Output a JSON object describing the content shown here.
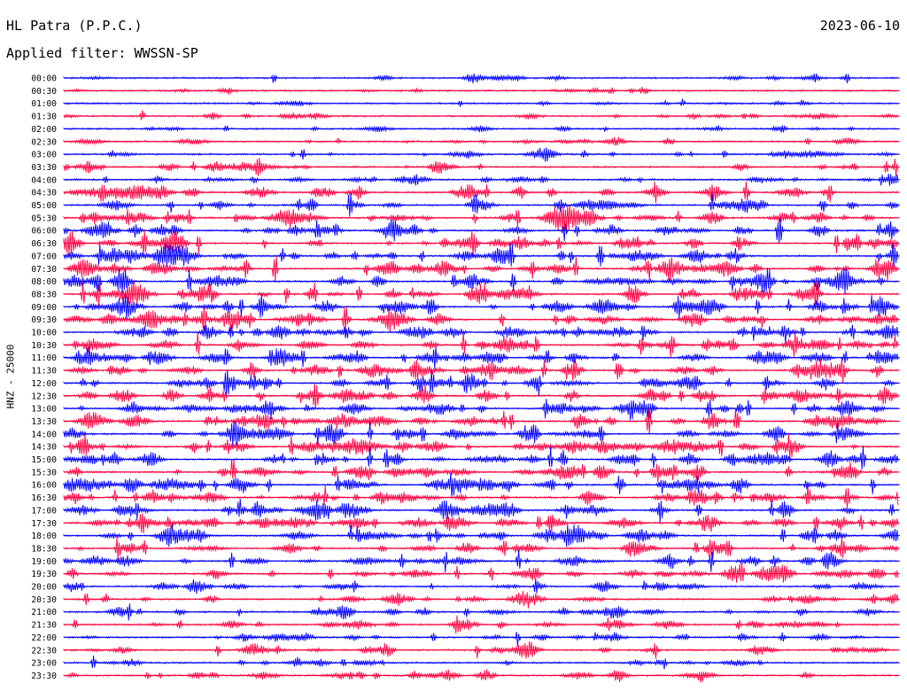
{
  "header": {
    "station": "HL Patra (P.P.C.)",
    "date": "2023-06-10",
    "filter": "Applied filter: WWSSN-SP",
    "channel": "HNZ - 25000"
  },
  "chart_data": {
    "type": "helicorder",
    "colors": [
      "#0000ff",
      "#ff0040"
    ],
    "rows": [
      {
        "label": "00:00",
        "color": "#0000ff",
        "amplitude": 0.25
      },
      {
        "label": "00:30",
        "color": "#ff0040",
        "amplitude": 0.2
      },
      {
        "label": "01:00",
        "color": "#0000ff",
        "amplitude": 0.2
      },
      {
        "label": "01:30",
        "color": "#ff0040",
        "amplitude": 0.3
      },
      {
        "label": "02:00",
        "color": "#0000ff",
        "amplitude": 0.25
      },
      {
        "label": "02:30",
        "color": "#ff0040",
        "amplitude": 0.3
      },
      {
        "label": "03:00",
        "color": "#0000ff",
        "amplitude": 0.4
      },
      {
        "label": "03:30",
        "color": "#ff0040",
        "amplitude": 0.55
      },
      {
        "label": "04:00",
        "color": "#0000ff",
        "amplitude": 0.6
      },
      {
        "label": "04:30",
        "color": "#ff0040",
        "amplitude": 0.75
      },
      {
        "label": "05:00",
        "color": "#0000ff",
        "amplitude": 0.85
      },
      {
        "label": "05:30",
        "color": "#ff0040",
        "amplitude": 0.95
      },
      {
        "label": "06:00",
        "color": "#0000ff",
        "amplitude": 1.0
      },
      {
        "label": "06:30",
        "color": "#ff0040",
        "amplitude": 1.0
      },
      {
        "label": "07:00",
        "color": "#0000ff",
        "amplitude": 1.0
      },
      {
        "label": "07:30",
        "color": "#ff0040",
        "amplitude": 1.0
      },
      {
        "label": "08:00",
        "color": "#0000ff",
        "amplitude": 1.0
      },
      {
        "label": "08:30",
        "color": "#ff0040",
        "amplitude": 1.0
      },
      {
        "label": "09:00",
        "color": "#0000ff",
        "amplitude": 1.0
      },
      {
        "label": "09:30",
        "color": "#ff0040",
        "amplitude": 1.0
      },
      {
        "label": "10:00",
        "color": "#0000ff",
        "amplitude": 1.0
      },
      {
        "label": "10:30",
        "color": "#ff0040",
        "amplitude": 1.0
      },
      {
        "label": "11:00",
        "color": "#0000ff",
        "amplitude": 1.0
      },
      {
        "label": "11:30",
        "color": "#ff0040",
        "amplitude": 1.0
      },
      {
        "label": "12:00",
        "color": "#0000ff",
        "amplitude": 1.0
      },
      {
        "label": "12:30",
        "color": "#ff0040",
        "amplitude": 1.0
      },
      {
        "label": "13:00",
        "color": "#0000ff",
        "amplitude": 1.0
      },
      {
        "label": "13:30",
        "color": "#ff0040",
        "amplitude": 1.0
      },
      {
        "label": "14:00",
        "color": "#0000ff",
        "amplitude": 1.0
      },
      {
        "label": "14:30",
        "color": "#ff0040",
        "amplitude": 1.0
      },
      {
        "label": "15:00",
        "color": "#0000ff",
        "amplitude": 1.0
      },
      {
        "label": "15:30",
        "color": "#ff0040",
        "amplitude": 1.0
      },
      {
        "label": "16:00",
        "color": "#0000ff",
        "amplitude": 1.0
      },
      {
        "label": "16:30",
        "color": "#ff0040",
        "amplitude": 1.0
      },
      {
        "label": "17:00",
        "color": "#0000ff",
        "amplitude": 0.95
      },
      {
        "label": "17:30",
        "color": "#ff0040",
        "amplitude": 0.95
      },
      {
        "label": "18:00",
        "color": "#0000ff",
        "amplitude": 0.95
      },
      {
        "label": "18:30",
        "color": "#ff0040",
        "amplitude": 0.9
      },
      {
        "label": "19:00",
        "color": "#0000ff",
        "amplitude": 0.85
      },
      {
        "label": "19:30",
        "color": "#ff0040",
        "amplitude": 0.75
      },
      {
        "label": "20:00",
        "color": "#0000ff",
        "amplitude": 0.6
      },
      {
        "label": "20:30",
        "color": "#ff0040",
        "amplitude": 0.6
      },
      {
        "label": "21:00",
        "color": "#0000ff",
        "amplitude": 0.55
      },
      {
        "label": "21:30",
        "color": "#ff0040",
        "amplitude": 0.55
      },
      {
        "label": "22:00",
        "color": "#0000ff",
        "amplitude": 0.5
      },
      {
        "label": "22:30",
        "color": "#ff0040",
        "amplitude": 0.5
      },
      {
        "label": "23:00",
        "color": "#0000ff",
        "amplitude": 0.45
      },
      {
        "label": "23:30",
        "color": "#ff0040",
        "amplitude": 0.5
      }
    ]
  }
}
